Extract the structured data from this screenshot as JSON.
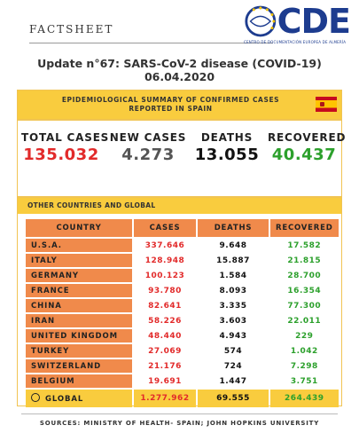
{
  "header": {
    "label": "FACTSHEET",
    "logo_text": "CDE",
    "logo_subtitle": "CENTRO DE DOCUMENTACIÓN EUROPEA DE ALMERÍA"
  },
  "title": {
    "line1": "Update n°67: SARS-CoV-2 disease (COVID-19)",
    "line2": "06.04.2020"
  },
  "spain": {
    "heading_line1": "EPIDEMIOLOGICAL SUMMARY OF CONFIRMED CASES",
    "heading_line2": "REPORTED IN SPAIN",
    "flag_icon": "spain-flag-icon",
    "stats": [
      {
        "label": "TOTAL CASES",
        "value": "135.032",
        "color": "#e22a2a"
      },
      {
        "label": "NEW CASES",
        "value": "4.273",
        "color": "#555555"
      },
      {
        "label": "DEATHS",
        "value": "13.055",
        "color": "#111111"
      },
      {
        "label": "RECOVERED",
        "value": "40.437",
        "color": "#2ca02c"
      }
    ]
  },
  "other": {
    "heading": "OTHER COUNTRIES AND GLOBAL",
    "columns": [
      "COUNTRY",
      "CASES",
      "DEATHS",
      "RECOVERED"
    ],
    "rows": [
      {
        "country": "U.S.A.",
        "cases": "337.646",
        "deaths": "9.648",
        "recovered": "17.582"
      },
      {
        "country": "ITALY",
        "cases": "128.948",
        "deaths": "15.887",
        "recovered": "21.815"
      },
      {
        "country": "GERMANY",
        "cases": "100.123",
        "deaths": "1.584",
        "recovered": "28.700"
      },
      {
        "country": "FRANCE",
        "cases": "93.780",
        "deaths": "8.093",
        "recovered": "16.354"
      },
      {
        "country": "CHINA",
        "cases": "82.641",
        "deaths": "3.335",
        "recovered": "77.300"
      },
      {
        "country": "IRAN",
        "cases": "58.226",
        "deaths": "3.603",
        "recovered": "22.011"
      },
      {
        "country": "UNITED KINGDOM",
        "cases": "48.440",
        "deaths": "4.943",
        "recovered": "229"
      },
      {
        "country": "TURKEY",
        "cases": "27.069",
        "deaths": "574",
        "recovered": "1.042"
      },
      {
        "country": "SWITZERLAND",
        "cases": "21.176",
        "deaths": "724",
        "recovered": "7.298"
      },
      {
        "country": "BELGIUM",
        "cases": "19.691",
        "deaths": "1.447",
        "recovered": "3.751"
      }
    ],
    "global": {
      "label": "GLOBAL",
      "cases": "1.277.962",
      "deaths": "69.555",
      "recovered": "264.439"
    }
  },
  "sources": "SOURCES: MINISTRY OF HEALTH- SPAIN; JOHN HOPKINS UNIVERSITY"
}
